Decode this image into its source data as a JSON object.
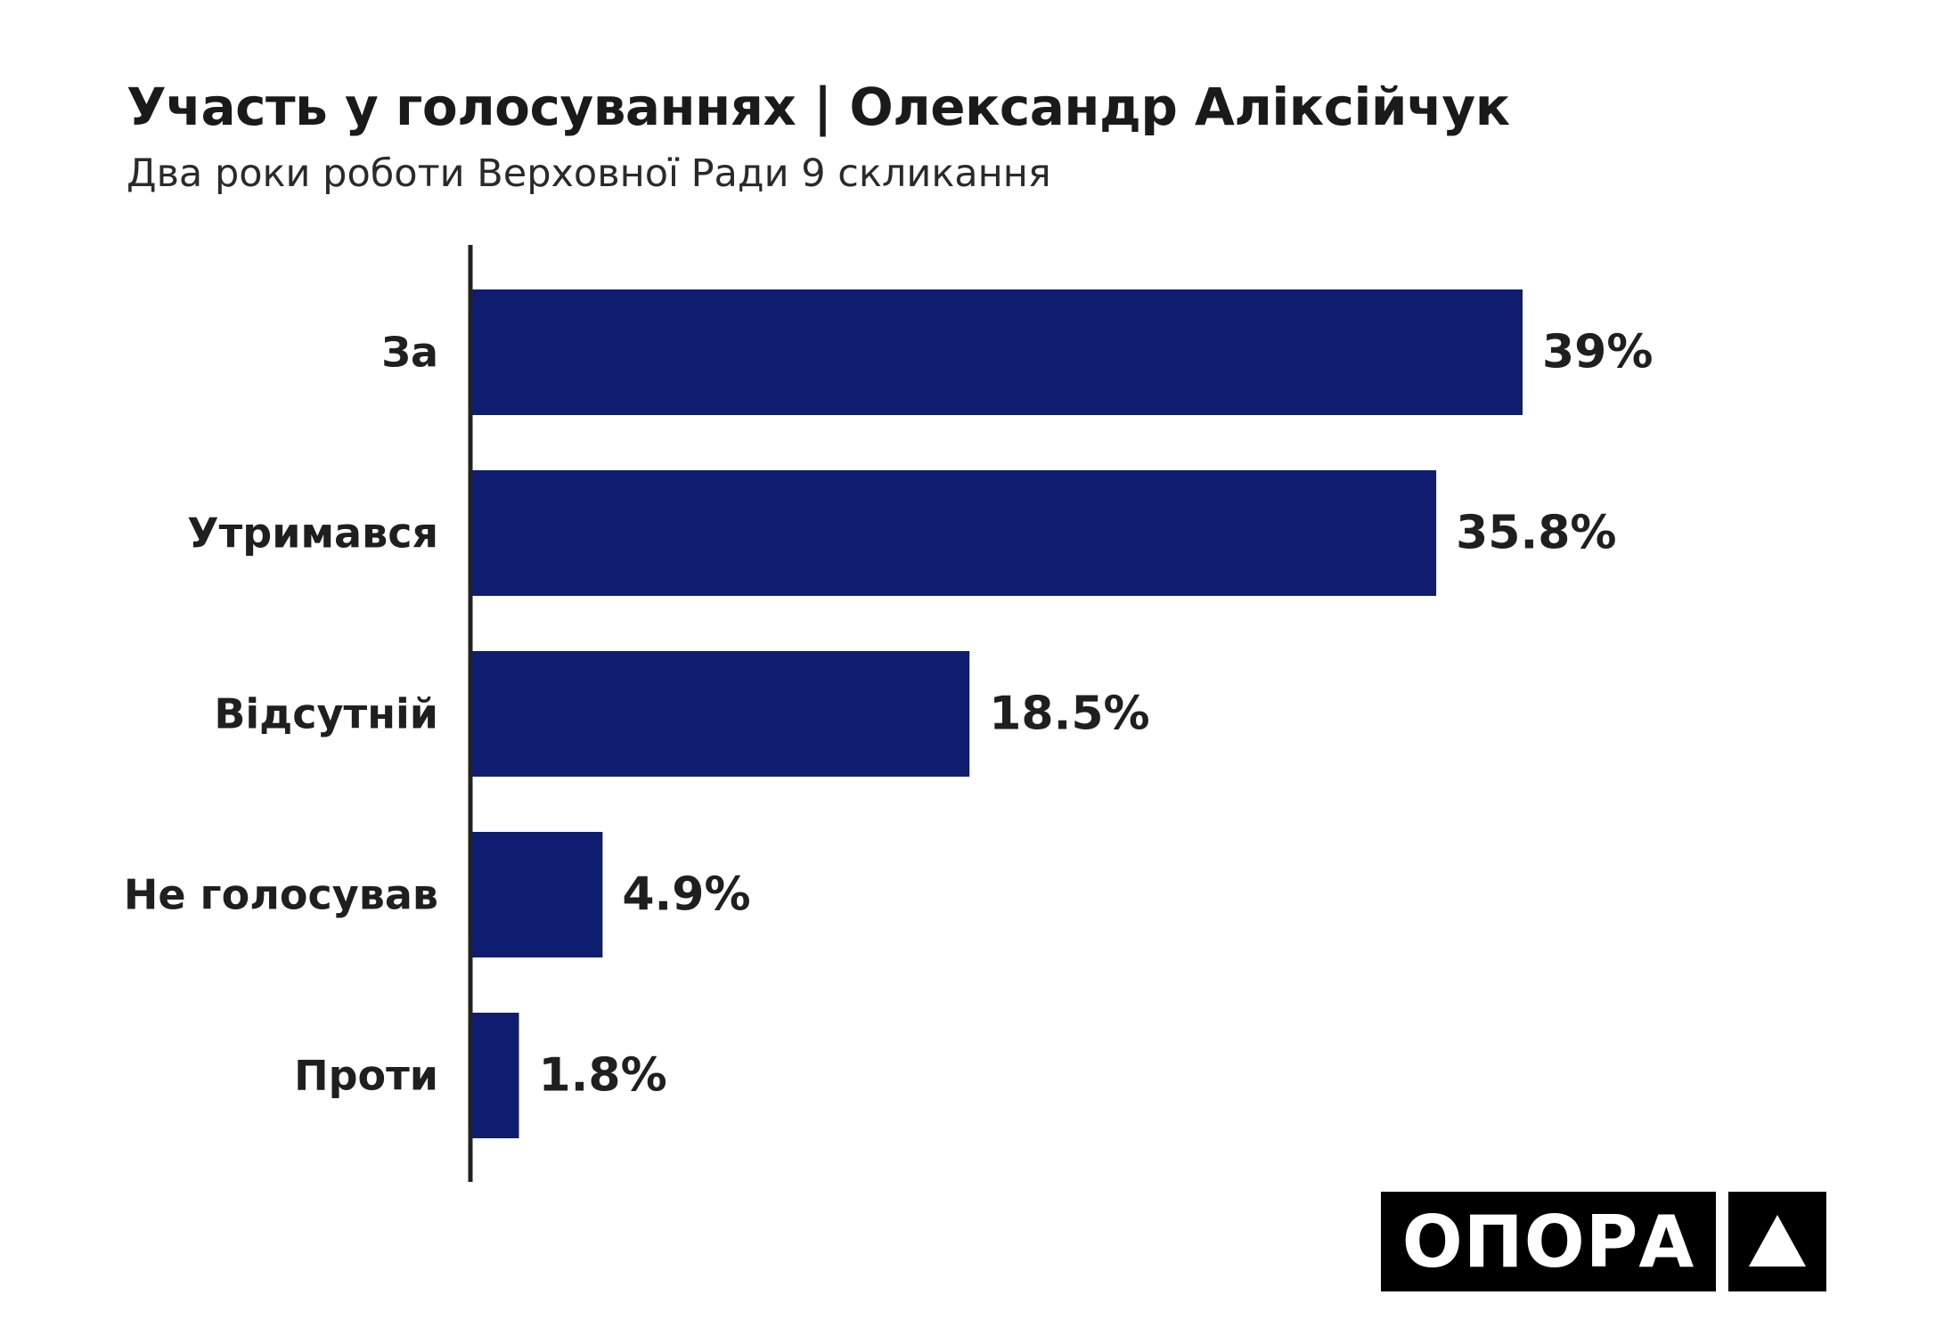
{
  "title": "Участь у голосуваннях | Олександр Аліксійчук",
  "subtitle": "Два роки роботи Верховної Ради 9 скликання",
  "logo": {
    "text": "ОПОРА",
    "mark_icon": "triangle-icon"
  },
  "colors": {
    "bar": "#0e1d70",
    "axis": "#222222",
    "label": "#1f1f1f"
  },
  "chart_data": {
    "type": "bar",
    "orientation": "horizontal",
    "title": "Участь у голосуваннях | Олександр Аліксійчук",
    "subtitle": "Два роки роботи Верховної Ради 9 скликання",
    "categories": [
      "За",
      "Утримався",
      "Відсутній",
      "Не голосував",
      "Проти"
    ],
    "values": [
      39,
      35.8,
      18.5,
      4.9,
      1.8
    ],
    "value_labels": [
      "39%",
      "35.8%",
      "18.5%",
      "4.9%",
      "1.8%"
    ],
    "unit": "%",
    "xlim": [
      0,
      39
    ],
    "grid": false,
    "legend": "none"
  }
}
